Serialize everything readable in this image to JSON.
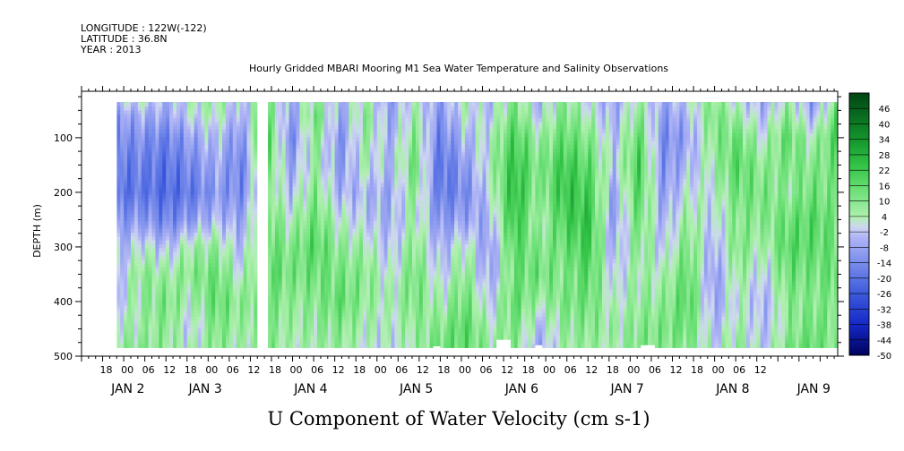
{
  "header": {
    "longitude": "LONGITUDE : 122W(-122)",
    "latitude": "LATITUDE : 36.8N",
    "year": "YEAR : 2013"
  },
  "chart_data": {
    "type": "heatmap",
    "title": "Hourly Gridded MBARI Mooring M1 Sea Water Temperature and Salinity Observations",
    "xlabel": "U Component of Water Velocity (cm s-1)",
    "ylabel": "DEPTH (m)",
    "xlim_hours": [
      -12,
      203
    ],
    "ylim": [
      500,
      15
    ],
    "y_ticks": [
      100,
      200,
      300,
      400,
      500
    ],
    "hour_ticks": [
      {
        "h": -6,
        "label": "18"
      },
      {
        "h": 0,
        "label": "00"
      },
      {
        "h": 6,
        "label": "06"
      },
      {
        "h": 12,
        "label": "12"
      },
      {
        "h": 18,
        "label": "18"
      },
      {
        "h": 24,
        "label": "00"
      },
      {
        "h": 30,
        "label": "06"
      },
      {
        "h": 36,
        "label": "12"
      },
      {
        "h": 42,
        "label": "18"
      },
      {
        "h": 48,
        "label": "00"
      },
      {
        "h": 54,
        "label": "06"
      },
      {
        "h": 60,
        "label": "12"
      },
      {
        "h": 66,
        "label": "18"
      },
      {
        "h": 72,
        "label": "00"
      },
      {
        "h": 78,
        "label": "06"
      },
      {
        "h": 84,
        "label": "12"
      },
      {
        "h": 90,
        "label": "18"
      },
      {
        "h": 96,
        "label": "00"
      },
      {
        "h": 102,
        "label": "06"
      },
      {
        "h": 108,
        "label": "12"
      },
      {
        "h": 114,
        "label": "18"
      },
      {
        "h": 120,
        "label": "00"
      },
      {
        "h": 126,
        "label": "06"
      },
      {
        "h": 132,
        "label": "12"
      },
      {
        "h": 138,
        "label": "18"
      },
      {
        "h": 144,
        "label": "00"
      },
      {
        "h": 150,
        "label": "06"
      },
      {
        "h": 156,
        "label": "12"
      },
      {
        "h": 162,
        "label": "18"
      },
      {
        "h": 168,
        "label": "00"
      },
      {
        "h": 174,
        "label": "06"
      },
      {
        "h": 180,
        "label": "12"
      }
    ],
    "day_labels": [
      {
        "h": 0,
        "label": "JAN 2"
      },
      {
        "h": 22,
        "label": "JAN 3"
      },
      {
        "h": 52,
        "label": "JAN 4"
      },
      {
        "h": 82,
        "label": "JAN 5"
      },
      {
        "h": 112,
        "label": "JAN 6"
      },
      {
        "h": 142,
        "label": "JAN 7"
      },
      {
        "h": 172,
        "label": "JAN 8"
      },
      {
        "h": 195,
        "label": "JAN 9"
      }
    ],
    "colorbar": {
      "levels": [
        46,
        40,
        34,
        28,
        22,
        16,
        10,
        4,
        -2,
        -8,
        -14,
        -20,
        -26,
        -32,
        -38,
        -44,
        -50
      ],
      "min": -50,
      "max": 52
    },
    "data_start_hour": -2,
    "data_gap_hours": [
      38,
      41
    ],
    "data_end_hour": 203,
    "data_max_depth": 485,
    "field": {
      "nx": 30,
      "depths": [
        20,
        60,
        100,
        150,
        200,
        250,
        300,
        350,
        400,
        450,
        485
      ],
      "columns_u": [
        [
          2,
          -10,
          -14,
          -18,
          -20,
          -12,
          -6,
          -4,
          -2,
          4,
          8
        ],
        [
          6,
          -6,
          -12,
          -16,
          -18,
          -10,
          2,
          10,
          8,
          6,
          10
        ],
        [
          -4,
          -8,
          -16,
          -20,
          -22,
          -16,
          -4,
          6,
          12,
          10,
          8
        ],
        [
          4,
          0,
          -8,
          -14,
          -18,
          -10,
          6,
          10,
          4,
          -2,
          2
        ],
        [
          8,
          4,
          -2,
          -6,
          -10,
          -4,
          8,
          14,
          16,
          12,
          10
        ],
        [
          -2,
          -6,
          -12,
          -16,
          -14,
          -8,
          -4,
          2,
          8,
          6,
          4
        ],
        [
          10,
          16,
          20,
          16,
          12,
          14,
          16,
          18,
          14,
          10,
          12
        ],
        [
          -6,
          -10,
          -14,
          -8,
          -4,
          4,
          10,
          12,
          8,
          6,
          4
        ],
        [
          6,
          14,
          10,
          6,
          10,
          14,
          18,
          14,
          10,
          8,
          6
        ],
        [
          -4,
          -8,
          -12,
          -10,
          -6,
          2,
          8,
          12,
          16,
          10,
          8
        ],
        [
          4,
          10,
          8,
          4,
          -4,
          -2,
          6,
          10,
          8,
          4,
          2
        ],
        [
          -10,
          -8,
          -6,
          -4,
          -8,
          -6,
          -4,
          0,
          4,
          2,
          0
        ],
        [
          2,
          6,
          10,
          14,
          10,
          6,
          10,
          14,
          12,
          8,
          6
        ],
        [
          -8,
          -12,
          -16,
          -20,
          -18,
          -12,
          -6,
          -2,
          4,
          10,
          14
        ],
        [
          6,
          2,
          -4,
          -10,
          -14,
          -8,
          4,
          10,
          14,
          18,
          16
        ],
        [
          -4,
          -2,
          2,
          4,
          0,
          -6,
          -10,
          -8,
          -2,
          4,
          8
        ],
        [
          10,
          14,
          20,
          24,
          26,
          24,
          18,
          14,
          16,
          12,
          10
        ],
        [
          -6,
          -2,
          6,
          10,
          8,
          4,
          10,
          14,
          6,
          -4,
          -8
        ],
        [
          8,
          12,
          16,
          22,
          24,
          20,
          14,
          10,
          12,
          8,
          6
        ],
        [
          -2,
          4,
          10,
          16,
          20,
          24,
          22,
          18,
          14,
          10,
          8
        ],
        [
          -8,
          -6,
          -4,
          -2,
          -8,
          -10,
          -6,
          -2,
          2,
          6,
          4
        ],
        [
          4,
          10,
          16,
          20,
          18,
          14,
          10,
          6,
          8,
          10,
          12
        ],
        [
          -6,
          -10,
          -14,
          -12,
          -10,
          -6,
          -2,
          4,
          8,
          12,
          10
        ],
        [
          2,
          -4,
          -8,
          -4,
          2,
          8,
          12,
          16,
          18,
          14,
          10
        ],
        [
          8,
          12,
          10,
          6,
          2,
          -2,
          -6,
          -10,
          -8,
          -4,
          0
        ],
        [
          -2,
          6,
          14,
          18,
          14,
          10,
          12,
          8,
          4,
          6,
          8
        ],
        [
          -8,
          -4,
          2,
          8,
          12,
          10,
          4,
          -2,
          -6,
          -4,
          -2
        ],
        [
          4,
          10,
          16,
          12,
          8,
          14,
          18,
          14,
          10,
          8,
          12
        ],
        [
          -12,
          -6,
          4,
          10,
          14,
          18,
          16,
          12,
          10,
          14,
          16
        ],
        [
          6,
          16,
          20,
          14,
          10,
          12,
          14,
          16,
          12,
          10,
          8
        ]
      ]
    }
  }
}
